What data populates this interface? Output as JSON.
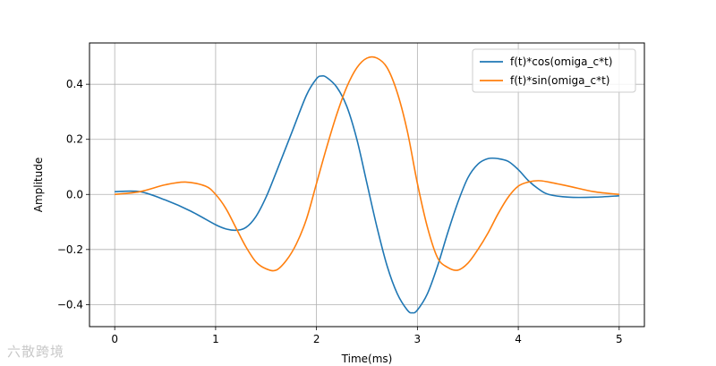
{
  "chart_data": {
    "type": "line",
    "xlabel": "Time(ms)",
    "ylabel": "Amplitude",
    "xlim": [
      -0.25,
      5.25
    ],
    "ylim": [
      -0.48,
      0.55
    ],
    "xticks": [
      0,
      1,
      2,
      3,
      4,
      5
    ],
    "xtick_labels": [
      "0",
      "1",
      "2",
      "3",
      "4",
      "5"
    ],
    "yticks": [
      -0.4,
      -0.2,
      0.0,
      0.2,
      0.4
    ],
    "ytick_labels": [
      "−0.4",
      "−0.2",
      "0.0",
      "0.2",
      "0.4"
    ],
    "grid": true,
    "legend_position": "top-right",
    "series": [
      {
        "name": "f(t)*cos(omiga_c*t)",
        "color": "#1f77b4",
        "x": [
          0,
          0.25,
          0.5,
          0.75,
          1.0,
          1.1,
          1.2,
          1.3,
          1.4,
          1.5,
          1.6,
          1.75,
          1.9,
          2.0,
          2.05,
          2.1,
          2.2,
          2.3,
          2.4,
          2.5,
          2.6,
          2.7,
          2.8,
          2.9,
          2.95,
          3.0,
          3.1,
          3.2,
          3.3,
          3.4,
          3.5,
          3.6,
          3.7,
          3.8,
          3.9,
          4.0,
          4.1,
          4.2,
          4.3,
          4.5,
          4.75,
          5.0
        ],
        "y": [
          0.01,
          0.01,
          -0.02,
          -0.06,
          -0.11,
          -0.125,
          -0.13,
          -0.12,
          -0.08,
          -0.01,
          0.08,
          0.22,
          0.36,
          0.42,
          0.43,
          0.425,
          0.39,
          0.32,
          0.2,
          0.04,
          -0.12,
          -0.26,
          -0.36,
          -0.42,
          -0.43,
          -0.42,
          -0.36,
          -0.26,
          -0.14,
          -0.03,
          0.06,
          0.11,
          0.13,
          0.13,
          0.12,
          0.09,
          0.05,
          0.02,
          0.0,
          -0.01,
          -0.01,
          -0.005
        ]
      },
      {
        "name": "f(t)*sin(omiga_c*t)",
        "color": "#ff7f0e",
        "x": [
          0,
          0.25,
          0.5,
          0.7,
          0.9,
          1.0,
          1.1,
          1.2,
          1.3,
          1.4,
          1.5,
          1.6,
          1.7,
          1.8,
          1.9,
          2.0,
          2.1,
          2.2,
          2.3,
          2.4,
          2.5,
          2.6,
          2.7,
          2.8,
          2.9,
          3.0,
          3.1,
          3.2,
          3.3,
          3.4,
          3.5,
          3.6,
          3.7,
          3.8,
          3.9,
          4.0,
          4.1,
          4.2,
          4.3,
          4.5,
          4.75,
          5.0
        ],
        "y": [
          0.0,
          0.01,
          0.035,
          0.045,
          0.03,
          0.0,
          -0.05,
          -0.12,
          -0.19,
          -0.245,
          -0.27,
          -0.275,
          -0.24,
          -0.18,
          -0.09,
          0.04,
          0.17,
          0.29,
          0.39,
          0.46,
          0.495,
          0.495,
          0.46,
          0.37,
          0.23,
          0.04,
          -0.12,
          -0.23,
          -0.265,
          -0.275,
          -0.25,
          -0.2,
          -0.14,
          -0.07,
          -0.01,
          0.03,
          0.045,
          0.05,
          0.045,
          0.03,
          0.01,
          0.0
        ]
      }
    ]
  },
  "watermark": {
    "text": "六散跨境"
  }
}
